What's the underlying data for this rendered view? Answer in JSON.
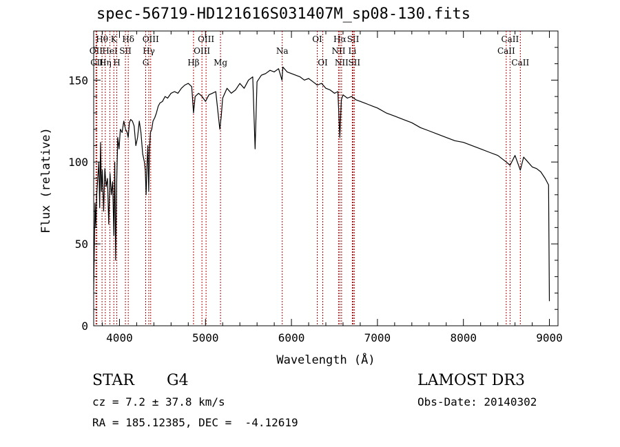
{
  "chart_data": {
    "type": "line",
    "title": "spec-56719-HD121616S031407M_sp08-130.fits",
    "xlabel": "Wavelength (Å)",
    "ylabel": "Flux (relative)",
    "xlim": [
      3700,
      9100
    ],
    "ylim": [
      0,
      180
    ],
    "xticks": [
      4000,
      5000,
      6000,
      7000,
      8000,
      9000
    ],
    "yticks": [
      0,
      50,
      100,
      150
    ],
    "grid": false,
    "series": [
      {
        "name": "spectrum",
        "x": [
          3700,
          3715,
          3725,
          3735,
          3745,
          3760,
          3770,
          3780,
          3790,
          3800,
          3815,
          3830,
          3845,
          3860,
          3875,
          3890,
          3905,
          3920,
          3935,
          3945,
          3955,
          3968,
          3980,
          3995,
          4010,
          4030,
          4050,
          4070,
          4090,
          4101,
          4115,
          4130,
          4150,
          4170,
          4190,
          4210,
          4230,
          4250,
          4270,
          4290,
          4300,
          4310,
          4320,
          4330,
          4340,
          4350,
          4360,
          4375,
          4390,
          4410,
          4430,
          4450,
          4470,
          4500,
          4530,
          4560,
          4600,
          4640,
          4680,
          4720,
          4760,
          4800,
          4840,
          4861,
          4880,
          4920,
          4960,
          5000,
          5040,
          5080,
          5120,
          5167,
          5184,
          5200,
          5250,
          5300,
          5350,
          5400,
          5450,
          5500,
          5550,
          5577,
          5600,
          5650,
          5700,
          5750,
          5800,
          5850,
          5890,
          5900,
          5950,
          6000,
          6050,
          6100,
          6150,
          6200,
          6250,
          6300,
          6350,
          6400,
          6450,
          6500,
          6540,
          6563,
          6580,
          6600,
          6650,
          6700,
          6750,
          6800,
          6850,
          6900,
          6950,
          7000,
          7100,
          7200,
          7300,
          7400,
          7500,
          7600,
          7700,
          7800,
          7900,
          8000,
          8100,
          8200,
          8300,
          8400,
          8498,
          8542,
          8600,
          8662,
          8700,
          8750,
          8800,
          8850,
          8900,
          8950,
          8990,
          9000
        ],
        "values": [
          22,
          75,
          60,
          80,
          88,
          100,
          72,
          112,
          82,
          95,
          70,
          96,
          85,
          90,
          62,
          93,
          80,
          88,
          55,
          100,
          40,
          90,
          115,
          108,
          120,
          118,
          125,
          120,
          118,
          115,
          124,
          126,
          125,
          122,
          110,
          115,
          125,
          118,
          105,
          100,
          95,
          80,
          98,
          110,
          82,
          108,
          118,
          120,
          125,
          127,
          130,
          134,
          136,
          137,
          140,
          139,
          142,
          143,
          142,
          145,
          147,
          148,
          146,
          130,
          140,
          142,
          140,
          137,
          141,
          142,
          143,
          120,
          128,
          139,
          145,
          142,
          144,
          148,
          145,
          150,
          152,
          108,
          149,
          153,
          154,
          156,
          155,
          157,
          150,
          158,
          155,
          154,
          153,
          152,
          150,
          151,
          149,
          147,
          148,
          145,
          144,
          142,
          143,
          115,
          138,
          141,
          139,
          140,
          138,
          137,
          136,
          135,
          134,
          133,
          130,
          128,
          126,
          124,
          121,
          119,
          117,
          115,
          113,
          112,
          110,
          108,
          106,
          104,
          100,
          98,
          104,
          95,
          103,
          100,
          97,
          96,
          94,
          90,
          86,
          15
        ]
      }
    ],
    "lines": [
      {
        "name": "Hθ",
        "x": 3797,
        "row": 0
      },
      {
        "name": "OII",
        "x": 3727,
        "row": 1
      },
      {
        "name": "CII",
        "x": 3737,
        "row": 2
      },
      {
        "name": "K",
        "x": 3934,
        "row": 0
      },
      {
        "name": "HeI",
        "x": 3889,
        "row": 1
      },
      {
        "name": "Hη",
        "x": 3835,
        "row": 2
      },
      {
        "name": "Hδ",
        "x": 4102,
        "row": 0
      },
      {
        "name": "SII",
        "x": 4069,
        "row": 1
      },
      {
        "name": "H",
        "x": 3969,
        "row": 2
      },
      {
        "name": "OIII",
        "x": 4363,
        "row": 0
      },
      {
        "name": "Hγ",
        "x": 4341,
        "row": 1
      },
      {
        "name": "G",
        "x": 4305,
        "row": 2
      },
      {
        "name": "OIII",
        "x": 5007,
        "row": 0
      },
      {
        "name": "OIII",
        "x": 4959,
        "row": 1
      },
      {
        "name": "Hβ",
        "x": 4861,
        "row": 2
      },
      {
        "name": "Mg",
        "x": 5175,
        "row": 2
      },
      {
        "name": "Na",
        "x": 5893,
        "row": 1
      },
      {
        "name": "OI",
        "x": 6300,
        "row": 0
      },
      {
        "name": "OI",
        "x": 6364,
        "row": 2
      },
      {
        "name": "Hα",
        "x": 6563,
        "row": 0
      },
      {
        "name": "SII",
        "x": 6717,
        "row": 0
      },
      {
        "name": "NII",
        "x": 6548,
        "row": 1
      },
      {
        "name": "Li",
        "x": 6708,
        "row": 1
      },
      {
        "name": "NII",
        "x": 6583,
        "row": 2
      },
      {
        "name": "SII",
        "x": 6731,
        "row": 2
      },
      {
        "name": "CaII",
        "x": 8542,
        "row": 0
      },
      {
        "name": "CaII",
        "x": 8498,
        "row": 1
      },
      {
        "name": "CaII",
        "x": 8662,
        "row": 2
      }
    ]
  },
  "info": {
    "object_class": "STAR",
    "subclass": "G4",
    "survey": "LAMOST DR3",
    "cz": "cz = 7.2 ± 37.8 km/s",
    "obs_date": "Obs-Date: 20140302",
    "coords": "RA = 185.12385, DEC =  -4.12619"
  },
  "colors": {
    "line_marker": "#b00000",
    "spectrum": "#000000"
  }
}
